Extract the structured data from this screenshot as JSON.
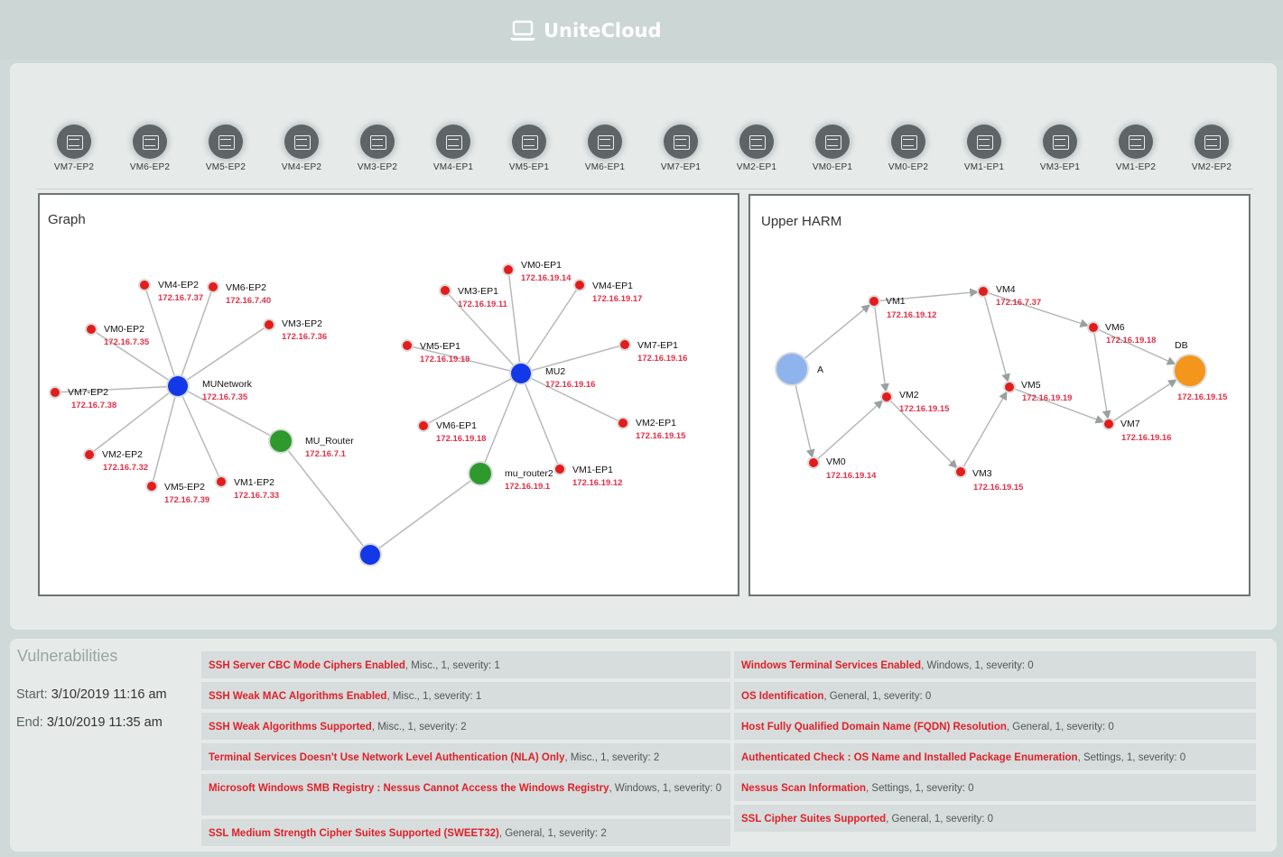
{
  "app": {
    "title": "UniteCloud",
    "icon": "laptop-icon"
  },
  "vm_strip": [
    "VM7-EP2",
    "VM6-EP2",
    "VM5-EP2",
    "VM4-EP2",
    "VM3-EP2",
    "VM4-EP1",
    "VM5-EP1",
    "VM6-EP1",
    "VM7-EP1",
    "VM2-EP1",
    "VM0-EP1",
    "VM0-EP2",
    "VM1-EP1",
    "VM3-EP1",
    "VM1-EP2",
    "VM2-EP2"
  ],
  "graph": {
    "title": "Graph",
    "nodes": [
      {
        "id": "munet",
        "label": "MUNetwork",
        "ip": "172.16.7.35",
        "kind": "network"
      },
      {
        "id": "mu2",
        "label": "MU2",
        "ip": "172.16.19.16",
        "kind": "network"
      },
      {
        "id": "hub",
        "label": "",
        "ip": "",
        "kind": "network"
      },
      {
        "id": "murouter",
        "label": "MU_Router",
        "ip": "172.16.7.1",
        "kind": "router"
      },
      {
        "id": "murouter2",
        "label": "mu_router2",
        "ip": "172.16.19.1",
        "kind": "router"
      },
      {
        "id": "vm4ep2",
        "label": "VM4-EP2",
        "ip": "172.16.7.37",
        "kind": "endpoint"
      },
      {
        "id": "vm6ep2",
        "label": "VM6-EP2",
        "ip": "172.16.7.40",
        "kind": "endpoint"
      },
      {
        "id": "vm0ep2",
        "label": "VM0-EP2",
        "ip": "172.16.7.35",
        "kind": "endpoint"
      },
      {
        "id": "vm3ep2",
        "label": "VM3-EP2",
        "ip": "172.16.7.36",
        "kind": "endpoint"
      },
      {
        "id": "vm7ep2",
        "label": "VM7-EP2",
        "ip": "172.16.7.38",
        "kind": "endpoint"
      },
      {
        "id": "vm2ep2",
        "label": "VM2-EP2",
        "ip": "172.16.7.32",
        "kind": "endpoint"
      },
      {
        "id": "vm5ep2",
        "label": "VM5-EP2",
        "ip": "172.16.7.39",
        "kind": "endpoint"
      },
      {
        "id": "vm1ep2",
        "label": "VM1-EP2",
        "ip": "172.16.7.33",
        "kind": "endpoint"
      },
      {
        "id": "vm0ep1",
        "label": "VM0-EP1",
        "ip": "172.16.19.14",
        "kind": "endpoint"
      },
      {
        "id": "vm3ep1",
        "label": "VM3-EP1",
        "ip": "172.16.19.11",
        "kind": "endpoint"
      },
      {
        "id": "vm4ep1",
        "label": "VM4-EP1",
        "ip": "172.16.19.17",
        "kind": "endpoint"
      },
      {
        "id": "vm5ep1",
        "label": "VM5-EP1",
        "ip": "172.16.19.19",
        "kind": "endpoint"
      },
      {
        "id": "vm7ep1",
        "label": "VM7-EP1",
        "ip": "172.16.19.16",
        "kind": "endpoint"
      },
      {
        "id": "vm6ep1",
        "label": "VM6-EP1",
        "ip": "172.16.19.18",
        "kind": "endpoint"
      },
      {
        "id": "vm2ep1",
        "label": "VM2-EP1",
        "ip": "172.16.19.15",
        "kind": "endpoint"
      },
      {
        "id": "vm1ep1",
        "label": "VM1-EP1",
        "ip": "172.16.19.12",
        "kind": "endpoint"
      }
    ],
    "edges": [
      [
        "munet",
        "vm4ep2"
      ],
      [
        "munet",
        "vm6ep2"
      ],
      [
        "munet",
        "vm0ep2"
      ],
      [
        "munet",
        "vm3ep2"
      ],
      [
        "munet",
        "vm7ep2"
      ],
      [
        "munet",
        "vm2ep2"
      ],
      [
        "munet",
        "vm5ep2"
      ],
      [
        "munet",
        "vm1ep2"
      ],
      [
        "munet",
        "murouter"
      ],
      [
        "murouter",
        "hub"
      ],
      [
        "hub",
        "murouter2"
      ],
      [
        "murouter2",
        "mu2"
      ],
      [
        "mu2",
        "vm0ep1"
      ],
      [
        "mu2",
        "vm3ep1"
      ],
      [
        "mu2",
        "vm4ep1"
      ],
      [
        "mu2",
        "vm5ep1"
      ],
      [
        "mu2",
        "vm7ep1"
      ],
      [
        "mu2",
        "vm6ep1"
      ],
      [
        "mu2",
        "vm2ep1"
      ],
      [
        "mu2",
        "vm1ep1"
      ]
    ]
  },
  "harm": {
    "title": "Upper HARM",
    "nodes": [
      {
        "id": "A",
        "label": "A",
        "ip": "",
        "kind": "attacker"
      },
      {
        "id": "VM1",
        "label": "VM1",
        "ip": "172.16.19.12",
        "kind": "vm"
      },
      {
        "id": "VM4",
        "label": "VM4",
        "ip": "172.16.7.37",
        "kind": "vm"
      },
      {
        "id": "VM6",
        "label": "VM6",
        "ip": "172.16.19.18",
        "kind": "vm"
      },
      {
        "id": "DB",
        "label": "DB",
        "ip": "172.16.19.15",
        "kind": "target"
      },
      {
        "id": "VM2",
        "label": "VM2",
        "ip": "172.16.19.15",
        "kind": "vm"
      },
      {
        "id": "VM5",
        "label": "VM5",
        "ip": "172.16.19.19",
        "kind": "vm"
      },
      {
        "id": "VM7",
        "label": "VM7",
        "ip": "172.16.19.16",
        "kind": "vm"
      },
      {
        "id": "VM0",
        "label": "VM0",
        "ip": "172.16.19.14",
        "kind": "vm"
      },
      {
        "id": "VM3",
        "label": "VM3",
        "ip": "172.16.19.15",
        "kind": "vm"
      }
    ],
    "edges": [
      [
        "A",
        "VM1"
      ],
      [
        "A",
        "VM0"
      ],
      [
        "VM0",
        "VM2"
      ],
      [
        "VM1",
        "VM2"
      ],
      [
        "VM1",
        "VM4"
      ],
      [
        "VM4",
        "VM6"
      ],
      [
        "VM4",
        "VM5"
      ],
      [
        "VM6",
        "DB"
      ],
      [
        "VM6",
        "VM7"
      ],
      [
        "VM5",
        "VM7"
      ],
      [
        "VM2",
        "VM3"
      ],
      [
        "VM3",
        "VM5"
      ],
      [
        "VM7",
        "DB"
      ]
    ]
  },
  "colors": {
    "network": "#1238e8",
    "router": "#2e9a2c",
    "endpoint": "#e31c1c",
    "attacker": "#8fb3ec",
    "target": "#f4951c",
    "ip": "#e0324a"
  },
  "vulnerabilities": {
    "heading": "Vulnerabilities",
    "start_label": "Start:",
    "start_value": "3/10/2019 11:16 am",
    "end_label": "End:",
    "end_value": "3/10/2019 11:35 am",
    "left": [
      {
        "name": "SSH Server CBC Mode Ciphers Enabled",
        "detail": ", Misc., 1, severity: 1"
      },
      {
        "name": "SSH Weak MAC Algorithms Enabled",
        "detail": ", Misc., 1, severity: 1"
      },
      {
        "name": "SSH Weak Algorithms Supported",
        "detail": ", Misc., 1, severity: 2"
      },
      {
        "name": "Terminal Services Doesn't Use Network Level Authentication (NLA) Only",
        "detail": ", Misc., 1, severity: 2"
      },
      {
        "name": "Microsoft Windows SMB Registry : Nessus Cannot Access the Windows Registry",
        "detail": ", Windows, 1, severity: 0"
      },
      {
        "name": "SSL Medium Strength Cipher Suites Supported (SWEET32)",
        "detail": ", General, 1, severity: 2"
      }
    ],
    "right": [
      {
        "name": "Windows Terminal Services Enabled",
        "detail": ", Windows, 1, severity: 0"
      },
      {
        "name": "OS Identification",
        "detail": ", General, 1, severity: 0"
      },
      {
        "name": "Host Fully Qualified Domain Name (FQDN) Resolution",
        "detail": ", General, 1, severity: 0"
      },
      {
        "name": "Authenticated Check : OS Name and Installed Package Enumeration",
        "detail": ", Settings, 1, severity: 0"
      },
      {
        "name": "Nessus Scan Information",
        "detail": ", Settings, 1, severity: 0"
      },
      {
        "name": "SSL Cipher Suites Supported",
        "detail": ", General, 1, severity: 0"
      }
    ]
  }
}
